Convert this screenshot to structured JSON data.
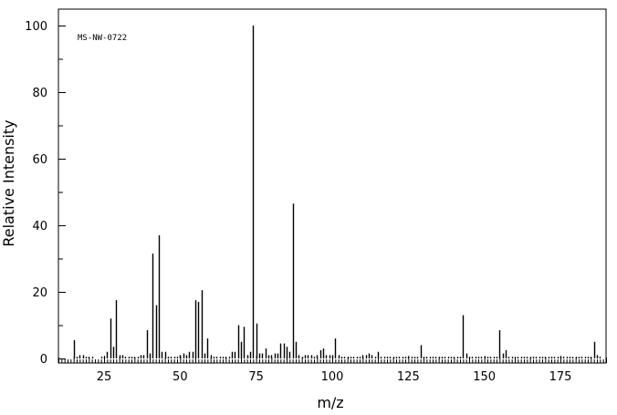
{
  "chart_data": {
    "type": "bar",
    "annotation": "MS-NW-0722",
    "xlabel": "m/z",
    "ylabel": "Relative Intensity",
    "xlim": [
      10,
      190
    ],
    "ylim": [
      0,
      100
    ],
    "x_ticks": [
      25,
      50,
      75,
      100,
      125,
      150,
      175
    ],
    "y_ticks": [
      0,
      20,
      40,
      60,
      80,
      100
    ],
    "grid": false,
    "legend": "none",
    "series": [
      {
        "peaks": [
          [
            15,
            5.5
          ],
          [
            16,
            0.5
          ],
          [
            17,
            1
          ],
          [
            18,
            1
          ],
          [
            19,
            0.5
          ],
          [
            20,
            0.5
          ],
          [
            21,
            0.5
          ],
          [
            24,
            0.5
          ],
          [
            25,
            0.5
          ],
          [
            26,
            2
          ],
          [
            27,
            12
          ],
          [
            28,
            3.5
          ],
          [
            29,
            17.5
          ],
          [
            30,
            1
          ],
          [
            31,
            1
          ],
          [
            32,
            0.5
          ],
          [
            33,
            0.5
          ],
          [
            34,
            0.5
          ],
          [
            35,
            0.5
          ],
          [
            36,
            0.5
          ],
          [
            37,
            1
          ],
          [
            38,
            1
          ],
          [
            39,
            8.5
          ],
          [
            40,
            1.5
          ],
          [
            41,
            31.5
          ],
          [
            42,
            16
          ],
          [
            43,
            37
          ],
          [
            44,
            2
          ],
          [
            45,
            2
          ],
          [
            46,
            0.5
          ],
          [
            47,
            0.5
          ],
          [
            48,
            0.5
          ],
          [
            49,
            0.5
          ],
          [
            50,
            1
          ],
          [
            51,
            1.5
          ],
          [
            52,
            1
          ],
          [
            53,
            2
          ],
          [
            54,
            2
          ],
          [
            55,
            17.5
          ],
          [
            56,
            17
          ],
          [
            57,
            20.5
          ],
          [
            58,
            1.5
          ],
          [
            59,
            6
          ],
          [
            60,
            1
          ],
          [
            61,
            0.5
          ],
          [
            62,
            0.5
          ],
          [
            63,
            0.5
          ],
          [
            64,
            0.5
          ],
          [
            65,
            0.5
          ],
          [
            66,
            0.5
          ],
          [
            67,
            2
          ],
          [
            68,
            2
          ],
          [
            69,
            10
          ],
          [
            70,
            5
          ],
          [
            71,
            9.5
          ],
          [
            72,
            1
          ],
          [
            73,
            2
          ],
          [
            74,
            100
          ],
          [
            75,
            10.5
          ],
          [
            76,
            1.5
          ],
          [
            77,
            1.5
          ],
          [
            78,
            3
          ],
          [
            79,
            1
          ],
          [
            80,
            1
          ],
          [
            81,
            1.5
          ],
          [
            82,
            1.5
          ],
          [
            83,
            4.5
          ],
          [
            84,
            4.5
          ],
          [
            85,
            3.5
          ],
          [
            86,
            2
          ],
          [
            87,
            46.5
          ],
          [
            88,
            5
          ],
          [
            89,
            1
          ],
          [
            90,
            0.5
          ],
          [
            91,
            1
          ],
          [
            92,
            1
          ],
          [
            93,
            1
          ],
          [
            94,
            0.5
          ],
          [
            95,
            1
          ],
          [
            96,
            2.5
          ],
          [
            97,
            3
          ],
          [
            98,
            1
          ],
          [
            99,
            1
          ],
          [
            100,
            1
          ],
          [
            101,
            6
          ],
          [
            102,
            1
          ],
          [
            103,
            0.5
          ],
          [
            104,
            0.5
          ],
          [
            105,
            0.5
          ],
          [
            106,
            0.5
          ],
          [
            107,
            0.5
          ],
          [
            108,
            0.5
          ],
          [
            109,
            0.5
          ],
          [
            110,
            1
          ],
          [
            111,
            1
          ],
          [
            112,
            1.5
          ],
          [
            113,
            1
          ],
          [
            114,
            0.5
          ],
          [
            115,
            2
          ],
          [
            116,
            0.5
          ],
          [
            117,
            0.5
          ],
          [
            118,
            0.5
          ],
          [
            119,
            0.5
          ],
          [
            120,
            0.5
          ],
          [
            121,
            0.5
          ],
          [
            122,
            0.5
          ],
          [
            123,
            0.5
          ],
          [
            124,
            0.5
          ],
          [
            125,
            0.5
          ],
          [
            126,
            0.5
          ],
          [
            127,
            0.5
          ],
          [
            128,
            0.5
          ],
          [
            129,
            4
          ],
          [
            130,
            0.5
          ],
          [
            131,
            0.5
          ],
          [
            132,
            0.5
          ],
          [
            133,
            0.5
          ],
          [
            134,
            0.5
          ],
          [
            135,
            0.5
          ],
          [
            136,
            0.5
          ],
          [
            137,
            0.5
          ],
          [
            138,
            0.5
          ],
          [
            139,
            0.5
          ],
          [
            140,
            0.5
          ],
          [
            141,
            0.5
          ],
          [
            142,
            0.5
          ],
          [
            143,
            13
          ],
          [
            144,
            1.5
          ],
          [
            145,
            0.5
          ],
          [
            146,
            0.5
          ],
          [
            147,
            0.5
          ],
          [
            148,
            0.5
          ],
          [
            149,
            0.5
          ],
          [
            150,
            0.5
          ],
          [
            151,
            0.5
          ],
          [
            152,
            0.5
          ],
          [
            153,
            0.5
          ],
          [
            154,
            0.5
          ],
          [
            155,
            8.5
          ],
          [
            156,
            1.5
          ],
          [
            157,
            2.5
          ],
          [
            158,
            0.5
          ],
          [
            159,
            0.5
          ],
          [
            160,
            0.5
          ],
          [
            161,
            0.5
          ],
          [
            162,
            0.5
          ],
          [
            163,
            0.5
          ],
          [
            164,
            0.5
          ],
          [
            165,
            0.5
          ],
          [
            166,
            0.5
          ],
          [
            167,
            0.5
          ],
          [
            168,
            0.5
          ],
          [
            169,
            0.5
          ],
          [
            170,
            0.5
          ],
          [
            171,
            0.5
          ],
          [
            172,
            0.5
          ],
          [
            173,
            0.5
          ],
          [
            174,
            0.5
          ],
          [
            175,
            0.5
          ],
          [
            176,
            0.5
          ],
          [
            177,
            0.5
          ],
          [
            178,
            0.5
          ],
          [
            179,
            0.5
          ],
          [
            180,
            0.5
          ],
          [
            181,
            0.5
          ],
          [
            182,
            0.5
          ],
          [
            183,
            0.5
          ],
          [
            184,
            0.5
          ],
          [
            185,
            0.5
          ],
          [
            186,
            5
          ],
          [
            187,
            1
          ],
          [
            188,
            0.5
          ]
        ]
      }
    ],
    "colors": {
      "peak": "#000000",
      "axis": "#000000",
      "background": "#ffffff"
    }
  }
}
